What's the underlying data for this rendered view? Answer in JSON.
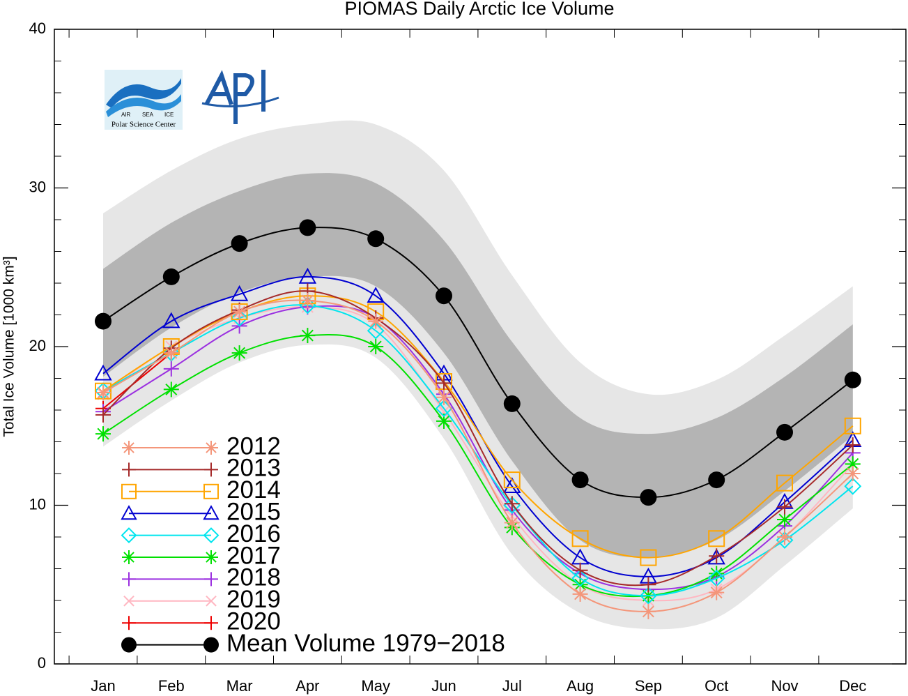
{
  "chart_data": {
    "type": "line",
    "title": "PIOMAS Daily Arctic Ice Volume",
    "y_label": "Total Ice Volume [1000 km³]",
    "logo_texts": [
      "AIR",
      "SEA",
      "ICE",
      "Polar Science Center"
    ],
    "categories": [
      "Jan",
      "Feb",
      "Mar",
      "Apr",
      "May",
      "Jun",
      "Jul",
      "Aug",
      "Sep",
      "Oct",
      "Nov",
      "Dec"
    ],
    "ylim": [
      0,
      40
    ],
    "yticks": [
      0,
      10,
      20,
      30,
      40
    ],
    "yticks_minor": [
      2,
      4,
      6,
      8,
      12,
      14,
      16,
      18,
      22,
      24,
      26,
      28,
      32,
      34,
      36,
      38
    ],
    "bands": [
      {
        "color": "#e6e6e6",
        "upper": [
          28.4,
          31.1,
          33.1,
          34.0,
          34.0,
          31.1,
          24.5,
          19.0,
          17.0,
          17.9,
          20.7,
          23.8
        ],
        "lower": [
          13.7,
          16.6,
          19.0,
          20.1,
          19.3,
          14.2,
          6.9,
          3.2,
          2.2,
          2.9,
          6.2,
          9.8
        ]
      },
      {
        "color": "#b4b4b4",
        "upper": [
          24.9,
          27.8,
          29.8,
          30.9,
          30.3,
          26.7,
          20.3,
          15.5,
          14.5,
          15.5,
          18.1,
          21.4
        ],
        "lower": [
          18.1,
          21.2,
          23.4,
          24.4,
          23.8,
          19.6,
          12.8,
          7.8,
          6.7,
          7.8,
          10.9,
          14.4
        ]
      }
    ],
    "legend": "lower left",
    "series": [
      {
        "name": "2012",
        "color": "#f4967a",
        "marker": "asterisk",
        "values": [
          17.1,
          19.6,
          22.2,
          22.9,
          21.6,
          16.8,
          8.9,
          4.4,
          3.3,
          4.5,
          8.0,
          12.0
        ]
      },
      {
        "name": "2013",
        "color": "#a52a2a",
        "marker": "plus",
        "values": [
          15.7,
          19.9,
          22.3,
          23.5,
          21.8,
          17.7,
          10.1,
          5.9,
          5.0,
          6.8,
          9.9,
          13.8
        ]
      },
      {
        "name": "2014",
        "color": "#ffa500",
        "marker": "square",
        "values": [
          17.2,
          20.0,
          22.2,
          23.2,
          22.2,
          17.8,
          11.6,
          7.9,
          6.7,
          7.9,
          11.4,
          15.0
        ]
      },
      {
        "name": "2015",
        "color": "#0000d0",
        "marker": "triangle",
        "values": [
          18.3,
          21.6,
          23.3,
          24.4,
          23.2,
          18.3,
          11.2,
          6.7,
          5.5,
          6.7,
          10.2,
          14.1
        ]
      },
      {
        "name": "2016",
        "color": "#00e5ee",
        "marker": "diamond",
        "values": [
          17.2,
          19.6,
          21.8,
          22.6,
          21.0,
          16.1,
          10.0,
          5.4,
          4.3,
          5.4,
          7.8,
          11.2
        ]
      },
      {
        "name": "2017",
        "color": "#00e000",
        "marker": "asterisk",
        "values": [
          14.5,
          17.3,
          19.6,
          20.7,
          20.0,
          15.3,
          8.6,
          5.0,
          4.3,
          5.7,
          9.1,
          12.6
        ]
      },
      {
        "name": "2018",
        "color": "#9b30e0",
        "marker": "plus",
        "values": [
          15.9,
          18.6,
          21.3,
          22.5,
          21.8,
          17.0,
          9.7,
          5.7,
          4.7,
          5.5,
          8.7,
          13.3
        ]
      },
      {
        "name": "2019",
        "color": "#ffb6c1",
        "marker": "x",
        "values": [
          17.0,
          20.0,
          21.8,
          22.5,
          21.4,
          15.9,
          9.3,
          5.0,
          4.0,
          4.7,
          8.0,
          12.6
        ]
      },
      {
        "name": "2020",
        "color": "#ee0000",
        "marker": "plus",
        "values": [
          16.1,
          19.6,
          null,
          null,
          null,
          null,
          null,
          null,
          null,
          null,
          null,
          null
        ]
      },
      {
        "name": "Mean Volume 1979−2018",
        "color": "#000000",
        "marker": "circle",
        "values": [
          21.6,
          24.4,
          26.5,
          27.5,
          26.8,
          23.2,
          16.4,
          11.6,
          10.5,
          11.6,
          14.6,
          17.9
        ]
      }
    ]
  }
}
